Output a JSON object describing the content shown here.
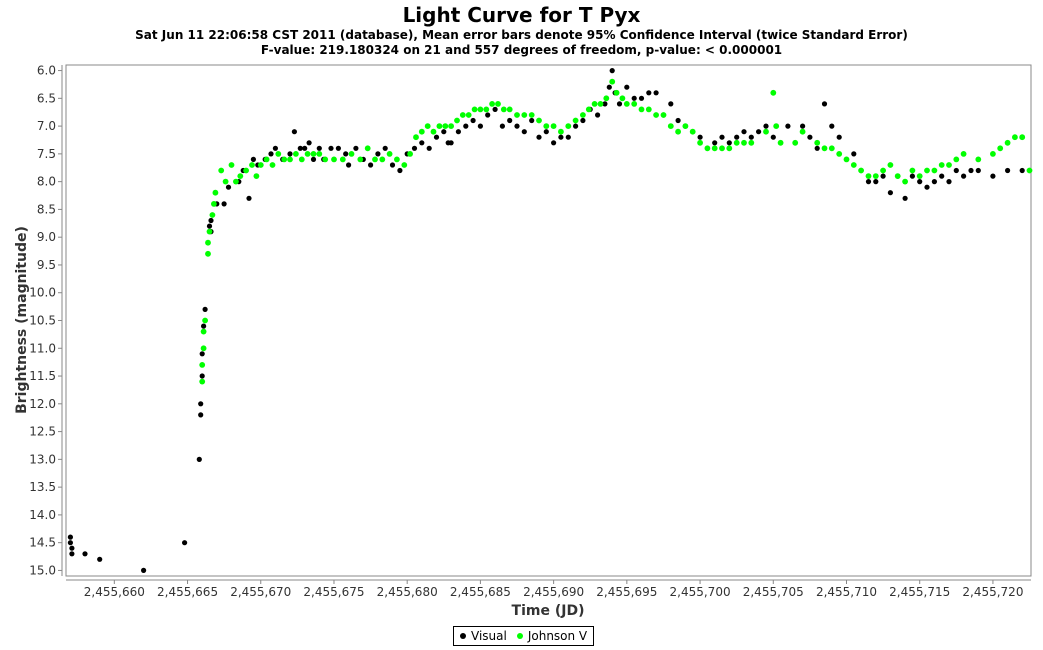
{
  "chart_data": {
    "type": "scatter",
    "title": "Light Curve for T Pyx",
    "subtitle_1": "Sat Jun 11 22:06:58 CST 2011 (database), Mean error bars denote 95% Confidence Interval (twice Standard Error)",
    "subtitle_2": "F-value: 219.180324 on 21 and 557 degrees of freedom, p-value: < 0.000001",
    "xlabel": "Time (JD)",
    "ylabel": "Brightness (magnitude)",
    "xlim": [
      2455656.7,
      2455722.6
    ],
    "ylim": [
      15.1,
      5.9
    ],
    "y_inverted": true,
    "x_ticks": [
      2455660,
      2455665,
      2455670,
      2455675,
      2455680,
      2455685,
      2455690,
      2455695,
      2455700,
      2455705,
      2455710,
      2455715,
      2455720
    ],
    "x_tick_labels": [
      "2,455,660",
      "2,455,665",
      "2,455,670",
      "2,455,675",
      "2,455,680",
      "2,455,685",
      "2,455,690",
      "2,455,695",
      "2,455,700",
      "2,455,705",
      "2,455,710",
      "2,455,715",
      "2,455,720"
    ],
    "y_ticks": [
      6.0,
      6.5,
      7.0,
      7.5,
      8.0,
      8.5,
      9.0,
      9.5,
      10.0,
      10.5,
      11.0,
      11.5,
      12.0,
      12.5,
      13.0,
      13.5,
      14.0,
      14.5,
      15.0
    ],
    "y_tick_labels": [
      "6.0",
      "6.5",
      "7.0",
      "7.5",
      "8.0",
      "8.5",
      "9.0",
      "9.5",
      "10.0",
      "10.5",
      "11.0",
      "11.5",
      "12.0",
      "12.5",
      "13.0",
      "13.5",
      "14.0",
      "14.5",
      "15.0"
    ],
    "grid": false,
    "legend_position": "bottom-center",
    "series": [
      {
        "name": "Visual",
        "color": "#000000",
        "points": [
          [
            2455657.0,
            14.4
          ],
          [
            2455657.0,
            14.5
          ],
          [
            2455657.1,
            14.6
          ],
          [
            2455657.1,
            14.7
          ],
          [
            2455658.0,
            14.7
          ],
          [
            2455659.0,
            14.8
          ],
          [
            2455662.0,
            15.0
          ],
          [
            2455664.8,
            14.5
          ],
          [
            2455665.8,
            13.0
          ],
          [
            2455665.9,
            12.0
          ],
          [
            2455665.9,
            12.2
          ],
          [
            2455666.0,
            11.5
          ],
          [
            2455666.0,
            11.1
          ],
          [
            2455666.1,
            10.6
          ],
          [
            2455666.2,
            10.3
          ],
          [
            2455666.5,
            8.8
          ],
          [
            2455666.6,
            8.7
          ],
          [
            2455666.6,
            8.9
          ],
          [
            2455667.0,
            8.4
          ],
          [
            2455667.5,
            8.4
          ],
          [
            2455667.8,
            8.1
          ],
          [
            2455668.5,
            8.0
          ],
          [
            2455668.8,
            7.8
          ],
          [
            2455669.2,
            8.3
          ],
          [
            2455669.5,
            7.6
          ],
          [
            2455669.8,
            7.7
          ],
          [
            2455670.3,
            7.6
          ],
          [
            2455670.7,
            7.5
          ],
          [
            2455671.0,
            7.4
          ],
          [
            2455671.5,
            7.6
          ],
          [
            2455672.0,
            7.5
          ],
          [
            2455672.3,
            7.1
          ],
          [
            2455672.7,
            7.4
          ],
          [
            2455673.0,
            7.4
          ],
          [
            2455673.3,
            7.3
          ],
          [
            2455673.6,
            7.6
          ],
          [
            2455674.0,
            7.4
          ],
          [
            2455674.3,
            7.6
          ],
          [
            2455674.8,
            7.4
          ],
          [
            2455675.3,
            7.4
          ],
          [
            2455675.8,
            7.5
          ],
          [
            2455676.0,
            7.7
          ],
          [
            2455676.5,
            7.4
          ],
          [
            2455677.0,
            7.6
          ],
          [
            2455677.5,
            7.7
          ],
          [
            2455678.0,
            7.5
          ],
          [
            2455678.5,
            7.4
          ],
          [
            2455679.0,
            7.7
          ],
          [
            2455679.5,
            7.8
          ],
          [
            2455680.0,
            7.5
          ],
          [
            2455680.5,
            7.4
          ],
          [
            2455681.0,
            7.3
          ],
          [
            2455681.5,
            7.4
          ],
          [
            2455682.0,
            7.2
          ],
          [
            2455682.5,
            7.1
          ],
          [
            2455682.8,
            7.3
          ],
          [
            2455683.0,
            7.3
          ],
          [
            2455683.5,
            7.1
          ],
          [
            2455684.0,
            7.0
          ],
          [
            2455684.5,
            6.9
          ],
          [
            2455685.0,
            7.0
          ],
          [
            2455685.5,
            6.8
          ],
          [
            2455686.0,
            6.7
          ],
          [
            2455686.5,
            7.0
          ],
          [
            2455687.0,
            6.9
          ],
          [
            2455687.5,
            7.0
          ],
          [
            2455688.0,
            7.1
          ],
          [
            2455688.5,
            6.9
          ],
          [
            2455689.0,
            7.2
          ],
          [
            2455689.5,
            7.1
          ],
          [
            2455690.0,
            7.3
          ],
          [
            2455690.5,
            7.2
          ],
          [
            2455691.0,
            7.2
          ],
          [
            2455691.5,
            7.0
          ],
          [
            2455692.0,
            6.9
          ],
          [
            2455692.5,
            6.7
          ],
          [
            2455693.0,
            6.8
          ],
          [
            2455693.5,
            6.6
          ],
          [
            2455693.8,
            6.3
          ],
          [
            2455694.0,
            6.0
          ],
          [
            2455694.2,
            6.4
          ],
          [
            2455694.5,
            6.6
          ],
          [
            2455695.0,
            6.3
          ],
          [
            2455695.5,
            6.5
          ],
          [
            2455696.0,
            6.5
          ],
          [
            2455696.5,
            6.4
          ],
          [
            2455697.0,
            6.4
          ],
          [
            2455697.5,
            6.8
          ],
          [
            2455698.0,
            6.6
          ],
          [
            2455698.5,
            6.9
          ],
          [
            2455699.0,
            7.0
          ],
          [
            2455700.0,
            7.2
          ],
          [
            2455701.0,
            7.3
          ],
          [
            2455701.5,
            7.2
          ],
          [
            2455702.0,
            7.3
          ],
          [
            2455702.5,
            7.2
          ],
          [
            2455703.0,
            7.1
          ],
          [
            2455703.5,
            7.2
          ],
          [
            2455704.0,
            7.1
          ],
          [
            2455704.5,
            7.0
          ],
          [
            2455705.0,
            7.2
          ],
          [
            2455706.0,
            7.0
          ],
          [
            2455707.0,
            7.0
          ],
          [
            2455707.5,
            7.2
          ],
          [
            2455708.0,
            7.4
          ],
          [
            2455708.5,
            6.6
          ],
          [
            2455709.0,
            7.0
          ],
          [
            2455709.5,
            7.2
          ],
          [
            2455710.0,
            7.6
          ],
          [
            2455710.5,
            7.5
          ],
          [
            2455711.0,
            7.8
          ],
          [
            2455711.5,
            8.0
          ],
          [
            2455712.0,
            8.0
          ],
          [
            2455712.5,
            7.9
          ],
          [
            2455713.0,
            8.2
          ],
          [
            2455713.5,
            7.9
          ],
          [
            2455714.0,
            8.3
          ],
          [
            2455714.5,
            7.9
          ],
          [
            2455715.0,
            8.0
          ],
          [
            2455715.5,
            8.1
          ],
          [
            2455716.0,
            8.0
          ],
          [
            2455716.5,
            7.9
          ],
          [
            2455717.0,
            8.0
          ],
          [
            2455717.5,
            7.8
          ],
          [
            2455718.0,
            7.9
          ],
          [
            2455718.5,
            7.8
          ],
          [
            2455719.0,
            7.8
          ],
          [
            2455720.0,
            7.9
          ],
          [
            2455721.0,
            7.8
          ],
          [
            2455722.0,
            7.8
          ]
        ]
      },
      {
        "name": "Johnson V",
        "color": "#00ff00",
        "points": [
          [
            2455666.0,
            11.6
          ],
          [
            2455666.0,
            11.3
          ],
          [
            2455666.1,
            11.0
          ],
          [
            2455666.1,
            10.7
          ],
          [
            2455666.2,
            10.5
          ],
          [
            2455666.4,
            9.3
          ],
          [
            2455666.4,
            9.1
          ],
          [
            2455666.5,
            8.9
          ],
          [
            2455666.7,
            8.6
          ],
          [
            2455666.8,
            8.4
          ],
          [
            2455666.9,
            8.2
          ],
          [
            2455667.3,
            7.8
          ],
          [
            2455667.6,
            8.0
          ],
          [
            2455668.0,
            7.7
          ],
          [
            2455668.3,
            8.0
          ],
          [
            2455668.6,
            7.9
          ],
          [
            2455669.0,
            7.8
          ],
          [
            2455669.4,
            7.7
          ],
          [
            2455669.7,
            7.9
          ],
          [
            2455670.0,
            7.7
          ],
          [
            2455670.4,
            7.6
          ],
          [
            2455670.8,
            7.7
          ],
          [
            2455671.2,
            7.5
          ],
          [
            2455671.6,
            7.6
          ],
          [
            2455672.0,
            7.6
          ],
          [
            2455672.4,
            7.5
          ],
          [
            2455672.8,
            7.6
          ],
          [
            2455673.2,
            7.5
          ],
          [
            2455673.6,
            7.5
          ],
          [
            2455674.0,
            7.5
          ],
          [
            2455674.4,
            7.6
          ],
          [
            2455675.0,
            7.6
          ],
          [
            2455675.6,
            7.6
          ],
          [
            2455676.2,
            7.5
          ],
          [
            2455676.8,
            7.6
          ],
          [
            2455677.3,
            7.4
          ],
          [
            2455677.8,
            7.6
          ],
          [
            2455678.3,
            7.6
          ],
          [
            2455678.8,
            7.5
          ],
          [
            2455679.3,
            7.6
          ],
          [
            2455679.8,
            7.7
          ],
          [
            2455680.2,
            7.5
          ],
          [
            2455680.6,
            7.2
          ],
          [
            2455681.0,
            7.1
          ],
          [
            2455681.4,
            7.0
          ],
          [
            2455681.8,
            7.1
          ],
          [
            2455682.2,
            7.0
          ],
          [
            2455682.6,
            7.0
          ],
          [
            2455683.0,
            7.0
          ],
          [
            2455683.4,
            6.9
          ],
          [
            2455683.8,
            6.8
          ],
          [
            2455684.2,
            6.8
          ],
          [
            2455684.6,
            6.7
          ],
          [
            2455685.0,
            6.7
          ],
          [
            2455685.4,
            6.7
          ],
          [
            2455685.8,
            6.6
          ],
          [
            2455686.2,
            6.6
          ],
          [
            2455686.6,
            6.7
          ],
          [
            2455687.0,
            6.7
          ],
          [
            2455687.5,
            6.8
          ],
          [
            2455688.0,
            6.8
          ],
          [
            2455688.5,
            6.8
          ],
          [
            2455689.0,
            6.9
          ],
          [
            2455689.5,
            7.0
          ],
          [
            2455690.0,
            7.0
          ],
          [
            2455690.5,
            7.1
          ],
          [
            2455691.0,
            7.0
          ],
          [
            2455691.5,
            6.9
          ],
          [
            2455692.0,
            6.8
          ],
          [
            2455692.4,
            6.7
          ],
          [
            2455692.8,
            6.6
          ],
          [
            2455693.2,
            6.6
          ],
          [
            2455693.6,
            6.5
          ],
          [
            2455694.0,
            6.2
          ],
          [
            2455694.3,
            6.4
          ],
          [
            2455694.7,
            6.5
          ],
          [
            2455695.0,
            6.6
          ],
          [
            2455695.5,
            6.6
          ],
          [
            2455696.0,
            6.7
          ],
          [
            2455696.5,
            6.7
          ],
          [
            2455697.0,
            6.8
          ],
          [
            2455697.5,
            6.8
          ],
          [
            2455698.0,
            7.0
          ],
          [
            2455698.5,
            7.1
          ],
          [
            2455699.0,
            7.0
          ],
          [
            2455699.5,
            7.1
          ],
          [
            2455700.0,
            7.3
          ],
          [
            2455700.5,
            7.4
          ],
          [
            2455701.0,
            7.4
          ],
          [
            2455701.5,
            7.4
          ],
          [
            2455702.0,
            7.4
          ],
          [
            2455702.5,
            7.3
          ],
          [
            2455703.0,
            7.3
          ],
          [
            2455703.5,
            7.3
          ],
          [
            2455704.5,
            7.1
          ],
          [
            2455705.0,
            6.4
          ],
          [
            2455705.2,
            7.0
          ],
          [
            2455705.5,
            7.3
          ],
          [
            2455706.5,
            7.3
          ],
          [
            2455707.0,
            7.1
          ],
          [
            2455708.0,
            7.3
          ],
          [
            2455708.5,
            7.4
          ],
          [
            2455709.0,
            7.4
          ],
          [
            2455709.5,
            7.5
          ],
          [
            2455710.0,
            7.6
          ],
          [
            2455710.5,
            7.7
          ],
          [
            2455711.0,
            7.8
          ],
          [
            2455711.5,
            7.9
          ],
          [
            2455712.0,
            7.9
          ],
          [
            2455712.5,
            7.8
          ],
          [
            2455713.0,
            7.7
          ],
          [
            2455713.5,
            7.9
          ],
          [
            2455714.0,
            8.0
          ],
          [
            2455714.5,
            7.8
          ],
          [
            2455715.0,
            7.9
          ],
          [
            2455715.5,
            7.8
          ],
          [
            2455716.0,
            7.8
          ],
          [
            2455716.5,
            7.7
          ],
          [
            2455717.0,
            7.7
          ],
          [
            2455717.5,
            7.6
          ],
          [
            2455718.0,
            7.5
          ],
          [
            2455719.0,
            7.6
          ],
          [
            2455720.0,
            7.5
          ],
          [
            2455720.5,
            7.4
          ],
          [
            2455721.0,
            7.3
          ],
          [
            2455721.5,
            7.2
          ],
          [
            2455722.0,
            7.2
          ],
          [
            2455722.5,
            7.8
          ]
        ]
      }
    ]
  }
}
